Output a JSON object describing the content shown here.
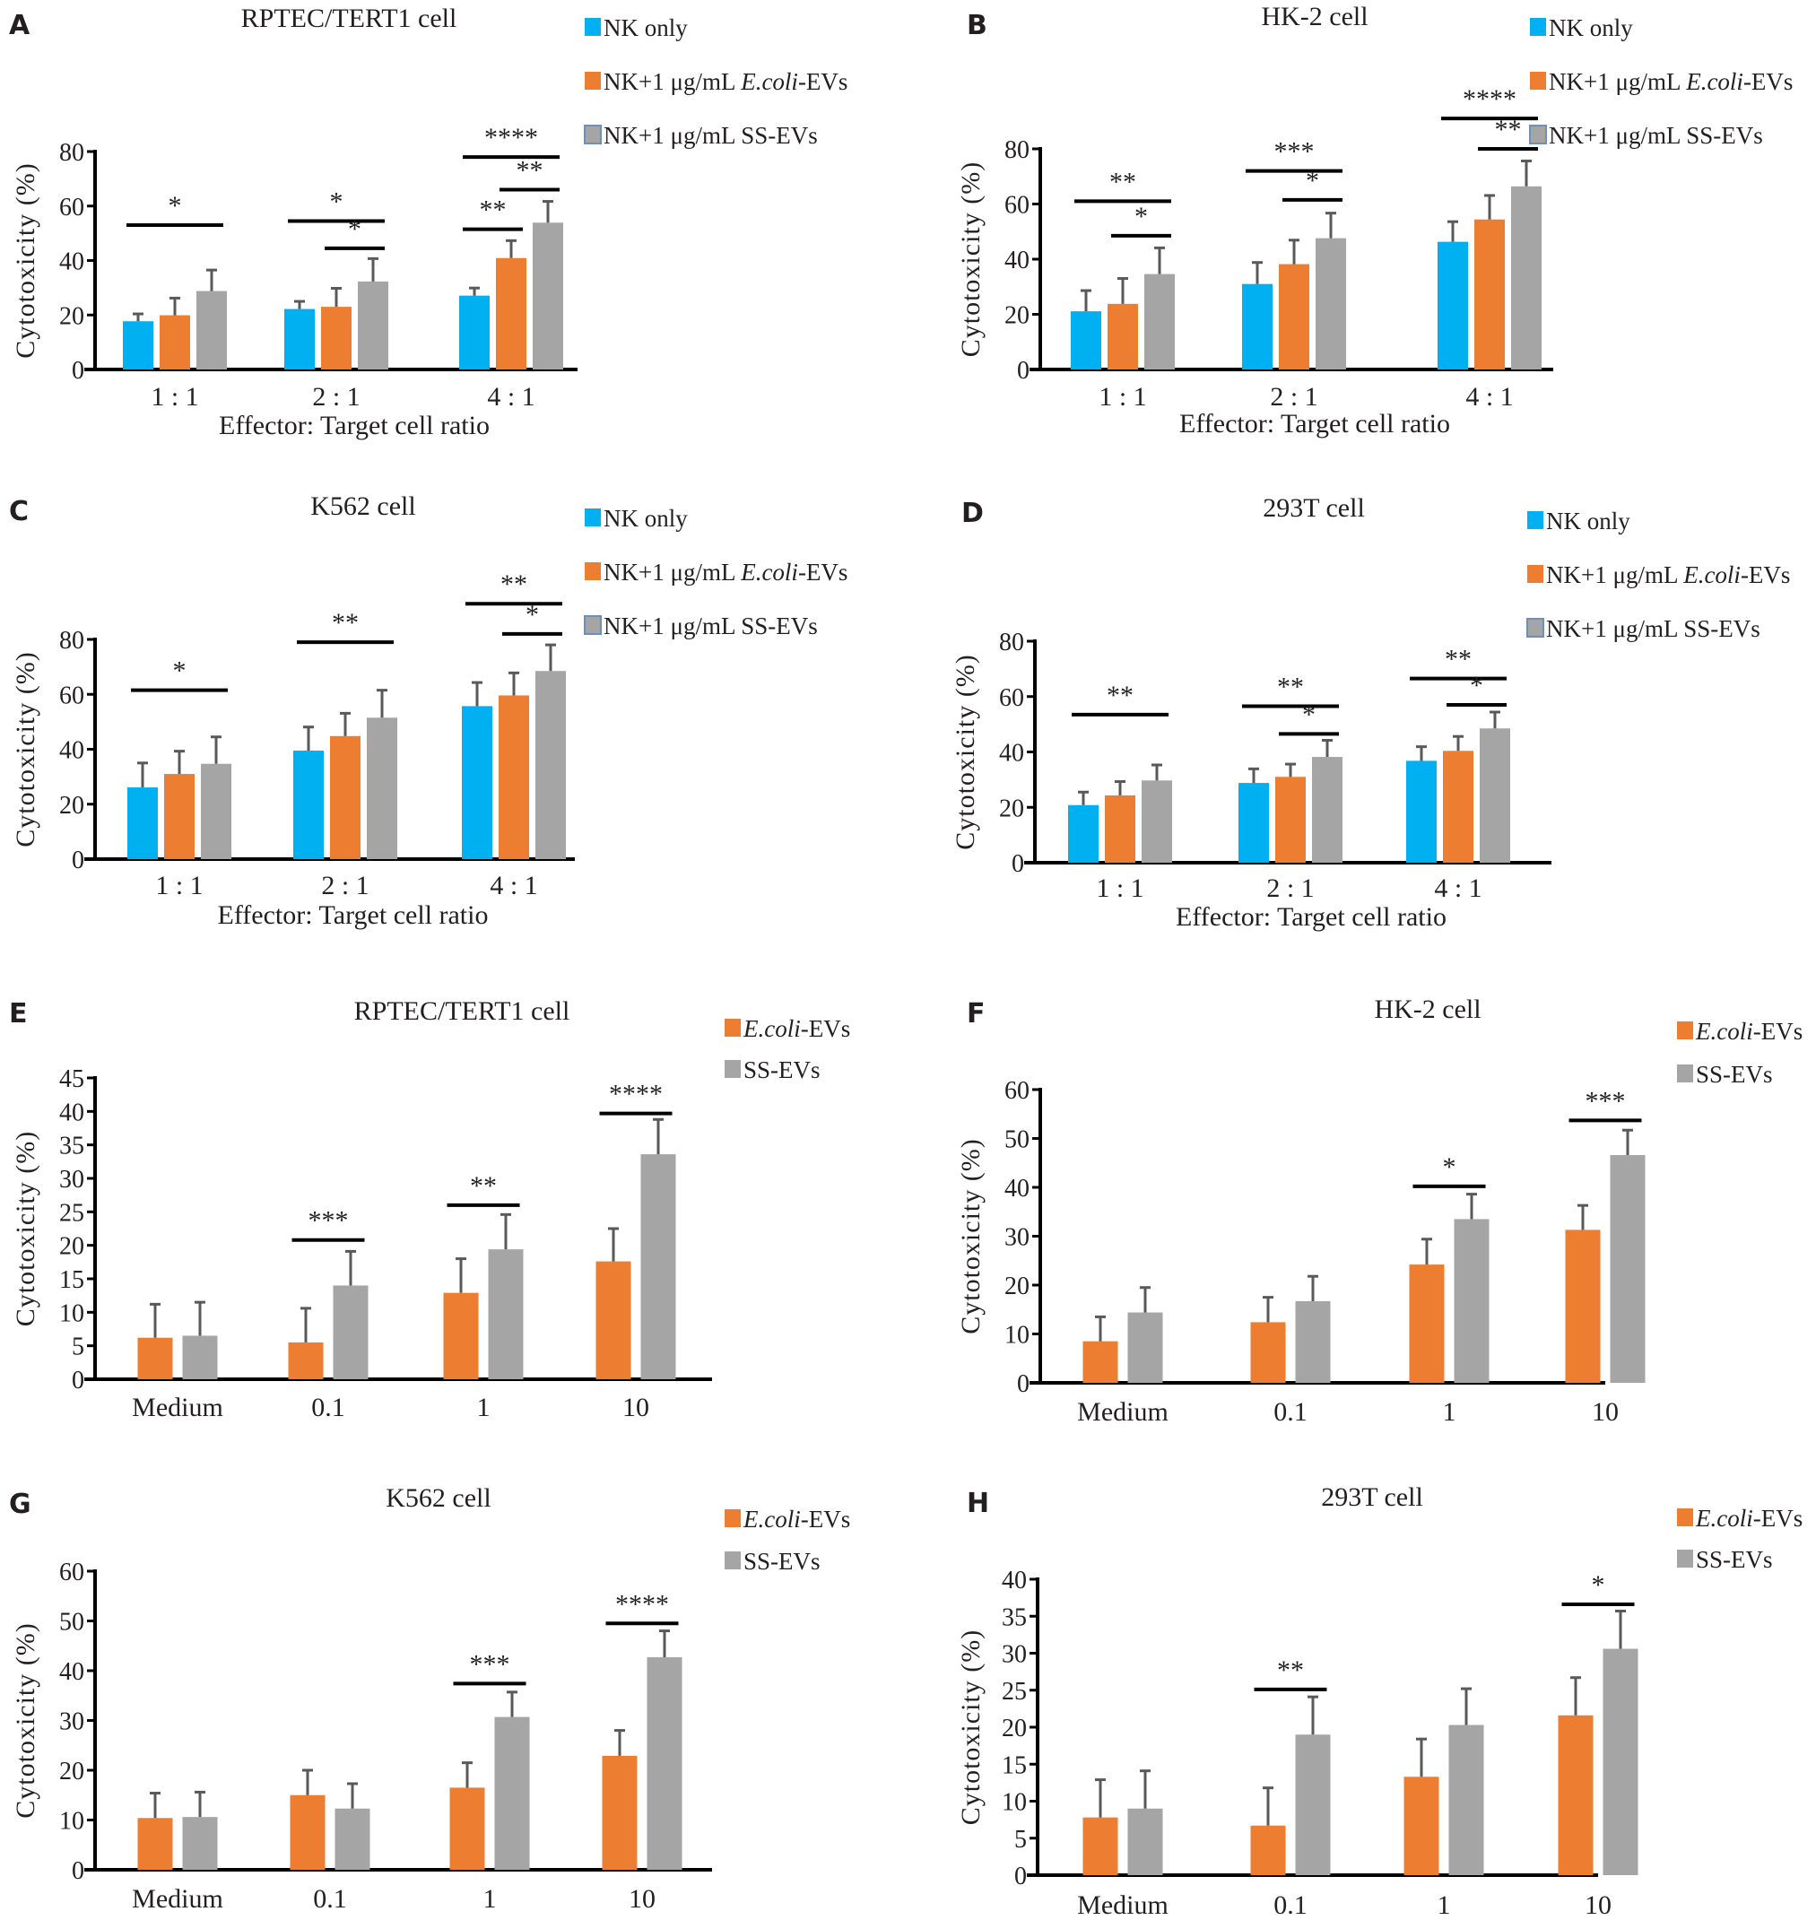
{
  "figure": {
    "colors": {
      "nk_only": "#00b0f0",
      "ecoli": "#ed7d31",
      "ss": "#a5a5a5",
      "ss_legend_border": "#6d8fb8",
      "error_bar": "#595959"
    }
  },
  "chart_data": [
    {
      "panel": "A",
      "type": "bar",
      "title": "RPTEC/TERT1 cell",
      "xlabel": "Effector: Target cell ratio",
      "ylabel": "Cytotoxicity (%)",
      "ylim": [
        0,
        80
      ],
      "yticks": [
        0,
        20,
        40,
        60,
        80
      ],
      "categories": [
        "1 : 1",
        "2 : 1",
        "4 : 1"
      ],
      "legend": [
        "NK only",
        "NK+1 μg/mL ",
        "NK+1 μg/mL SS-EVs"
      ],
      "legend_italic": [
        "",
        "E.coli",
        ""
      ],
      "legend_suffix": [
        "",
        "-EVs",
        ""
      ],
      "legend_position": "top-right",
      "series": [
        {
          "name": "NK only",
          "color_key": "nk_only",
          "values": [
            17.7,
            22.2,
            27.1
          ],
          "errors": [
            2.7,
            2.8,
            2.8
          ]
        },
        {
          "name": "NK+1 μg/mL E.coli-EVs",
          "color_key": "ecoli",
          "values": [
            19.9,
            23.0,
            40.9
          ],
          "errors": [
            6.3,
            6.8,
            6.4
          ]
        },
        {
          "name": "NK+1 μg/mL SS-EVs",
          "color_key": "ss",
          "values": [
            28.8,
            32.3,
            53.9
          ],
          "errors": [
            7.7,
            8.4,
            7.8
          ]
        }
      ],
      "significance": [
        {
          "group": 0,
          "from": 0,
          "to": 2,
          "label": "*",
          "level": 53
        },
        {
          "group": 1,
          "from": 0,
          "to": 2,
          "label": "*",
          "level": 54.5
        },
        {
          "group": 1,
          "from": 1,
          "to": 2,
          "label": "*",
          "level": 44.5
        },
        {
          "group": 2,
          "from": 0,
          "to": 2,
          "label": "****",
          "level": 78
        },
        {
          "group": 2,
          "from": 0,
          "to": 1,
          "label": "**",
          "level": 51.5
        },
        {
          "group": 2,
          "from": 1,
          "to": 2,
          "label": "**",
          "level": 66
        }
      ]
    },
    {
      "panel": "B",
      "type": "bar",
      "title": "HK-2 cell",
      "xlabel": "Effector: Target cell ratio",
      "ylabel": "Cytotoxicity (%)",
      "ylim": [
        0,
        80
      ],
      "yticks": [
        0,
        20,
        40,
        60,
        80
      ],
      "categories": [
        "1 : 1",
        "2 : 1",
        "4 : 1"
      ],
      "legend": [
        "NK only",
        "NK+1 μg/mL ",
        "NK+1 μg/mL SS-EVs"
      ],
      "legend_italic": [
        "",
        "E.coli",
        ""
      ],
      "legend_suffix": [
        "",
        "-EVs",
        ""
      ],
      "legend_position": "top-right",
      "series": [
        {
          "name": "NK only",
          "color_key": "nk_only",
          "values": [
            21.1,
            31.0,
            46.3
          ],
          "errors": [
            7.5,
            7.8,
            7.3
          ]
        },
        {
          "name": "NK+1 μg/mL E.coli-EVs",
          "color_key": "ecoli",
          "values": [
            23.8,
            38.2,
            54.4
          ],
          "errors": [
            9.2,
            8.7,
            8.7
          ]
        },
        {
          "name": "NK+1 μg/mL SS-EVs",
          "color_key": "ss",
          "values": [
            34.6,
            47.6,
            66.4
          ],
          "errors": [
            9.5,
            9.1,
            9.2
          ]
        }
      ],
      "significance": [
        {
          "group": 0,
          "from": 0,
          "to": 2,
          "label": "**",
          "level": 61
        },
        {
          "group": 0,
          "from": 1,
          "to": 2,
          "label": "*",
          "level": 48.5
        },
        {
          "group": 1,
          "from": 0,
          "to": 2,
          "label": "***",
          "level": 72
        },
        {
          "group": 1,
          "from": 1,
          "to": 2,
          "label": "*",
          "level": 61.5
        },
        {
          "group": 2,
          "from": 0,
          "to": 2,
          "label": "****",
          "level": 91
        },
        {
          "group": 2,
          "from": 1,
          "to": 2,
          "label": "**",
          "level": 80
        }
      ]
    },
    {
      "panel": "C",
      "type": "bar",
      "title": "K562 cell",
      "xlabel": "Effector: Target cell ratio",
      "ylabel": "Cytotoxicity (%)",
      "ylim": [
        0,
        80
      ],
      "yticks": [
        0,
        20,
        40,
        60,
        80
      ],
      "categories": [
        "1 : 1",
        "2 : 1",
        "4 : 1"
      ],
      "legend": [
        "NK only",
        "NK+1 μg/mL ",
        "NK+1 μg/mL SS-EVs"
      ],
      "legend_italic": [
        "",
        "E.coli",
        ""
      ],
      "legend_suffix": [
        "",
        "-EVs",
        ""
      ],
      "legend_position": "top-right",
      "series": [
        {
          "name": "NK only",
          "color_key": "nk_only",
          "values": [
            26.1,
            39.5,
            55.7
          ],
          "errors": [
            8.9,
            8.6,
            8.6
          ]
        },
        {
          "name": "NK+1 μg/mL E.coli-EVs",
          "color_key": "ecoli",
          "values": [
            31.0,
            44.8,
            59.6
          ],
          "errors": [
            8.3,
            8.3,
            8.2
          ]
        },
        {
          "name": "NK+1 μg/mL SS-EVs",
          "color_key": "ss",
          "values": [
            34.7,
            51.5,
            68.5
          ],
          "errors": [
            9.8,
            10.0,
            9.5
          ]
        }
      ],
      "significance": [
        {
          "group": 0,
          "from": 0,
          "to": 2,
          "label": "*",
          "level": 61.5
        },
        {
          "group": 1,
          "from": 0,
          "to": 2,
          "label": "**",
          "level": 79
        },
        {
          "group": 2,
          "from": 0,
          "to": 2,
          "label": "**",
          "level": 93
        },
        {
          "group": 2,
          "from": 1,
          "to": 2,
          "label": "*",
          "level": 82
        }
      ]
    },
    {
      "panel": "D",
      "type": "bar",
      "title": "293T cell",
      "xlabel": "Effector: Target cell ratio",
      "ylabel": "Cytotoxicity (%)",
      "ylim": [
        0,
        80
      ],
      "yticks": [
        0,
        20,
        40,
        60,
        80
      ],
      "categories": [
        "1 : 1",
        "2 : 1",
        "4 : 1"
      ],
      "legend": [
        "NK only",
        "NK+1 μg/mL ",
        "NK+1 μg/mL SS-EVs"
      ],
      "legend_italic": [
        "",
        "E.coli",
        ""
      ],
      "legend_suffix": [
        "",
        "-EVs",
        ""
      ],
      "legend_position": "top-right",
      "series": [
        {
          "name": "NK only",
          "color_key": "nk_only",
          "values": [
            20.8,
            28.8,
            36.8
          ],
          "errors": [
            4.7,
            5.1,
            5.1
          ]
        },
        {
          "name": "NK+1 μg/mL E.coli-EVs",
          "color_key": "ecoli",
          "values": [
            24.3,
            31.0,
            40.4
          ],
          "errors": [
            5.0,
            4.6,
            5.2
          ]
        },
        {
          "name": "NK+1 μg/mL SS-EVs",
          "color_key": "ss",
          "values": [
            29.7,
            38.2,
            48.5
          ],
          "errors": [
            5.6,
            6.0,
            5.9
          ]
        }
      ],
      "significance": [
        {
          "group": 0,
          "from": 0,
          "to": 2,
          "label": "**",
          "level": 53.5
        },
        {
          "group": 1,
          "from": 0,
          "to": 2,
          "label": "**",
          "level": 56.5
        },
        {
          "group": 1,
          "from": 1,
          "to": 2,
          "label": "*",
          "level": 46.5
        },
        {
          "group": 2,
          "from": 0,
          "to": 2,
          "label": "**",
          "level": 66.5
        },
        {
          "group": 2,
          "from": 1,
          "to": 2,
          "label": "*",
          "level": 57
        }
      ]
    },
    {
      "panel": "E",
      "type": "bar",
      "title": "RPTEC/TERT1 cell",
      "xlabel": "",
      "ylabel": "Cytotoxicity (%)",
      "ylim": [
        0,
        45
      ],
      "yticks": [
        0,
        5,
        10,
        15,
        20,
        25,
        30,
        35,
        40,
        45
      ],
      "categories": [
        "Medium",
        "0.1",
        "1",
        "10"
      ],
      "legend": [
        "",
        "SS-EVs"
      ],
      "legend_italic": [
        "E.coli",
        ""
      ],
      "legend_suffix": [
        "-EVs",
        ""
      ],
      "legend_position": "top-right",
      "series": [
        {
          "name": "E.coli-EVs",
          "color_key": "ecoli",
          "values": [
            6.2,
            5.5,
            12.9,
            17.6
          ],
          "errors": [
            5.0,
            5.1,
            5.1,
            4.9
          ]
        },
        {
          "name": "SS-EVs",
          "color_key": "ss",
          "values": [
            6.5,
            14.0,
            19.4,
            33.6
          ],
          "errors": [
            5.0,
            5.1,
            5.2,
            5.2
          ]
        }
      ],
      "significance": [
        {
          "group": 1,
          "from": 0,
          "to": 1,
          "label": "***",
          "level": 20.8
        },
        {
          "group": 2,
          "from": 0,
          "to": 1,
          "label": "**",
          "level": 26.0
        },
        {
          "group": 3,
          "from": 0,
          "to": 1,
          "label": "****",
          "level": 39.7
        }
      ]
    },
    {
      "panel": "F",
      "type": "bar",
      "title": "HK-2 cell",
      "xlabel": "",
      "ylabel": "Cytotoxicity (%)",
      "ylim": [
        0,
        60
      ],
      "yticks": [
        0,
        10,
        20,
        30,
        40,
        50,
        60
      ],
      "categories": [
        "Medium",
        "0.1",
        "1",
        "10"
      ],
      "legend": [
        "",
        "SS-EVs"
      ],
      "legend_italic": [
        "E.coli",
        ""
      ],
      "legend_suffix": [
        "-EVs",
        ""
      ],
      "legend_position": "top-right",
      "series": [
        {
          "name": "E.coli-EVs",
          "color_key": "ecoli",
          "values": [
            8.5,
            12.4,
            24.2,
            31.3
          ],
          "errors": [
            5.0,
            5.1,
            5.2,
            5.0
          ]
        },
        {
          "name": "SS-EVs",
          "color_key": "ss",
          "values": [
            14.4,
            16.7,
            33.5,
            46.6
          ],
          "errors": [
            5.1,
            5.1,
            5.1,
            5.1
          ]
        }
      ],
      "significance": [
        {
          "group": 2,
          "from": 0,
          "to": 1,
          "label": "*",
          "level": 40.2
        },
        {
          "group": 3,
          "from": 0,
          "to": 1,
          "label": "***",
          "level": 53.7
        }
      ]
    },
    {
      "panel": "G",
      "type": "bar",
      "title": "K562 cell",
      "xlabel": "",
      "ylabel": "Cytotoxicity (%)",
      "ylim": [
        0,
        60
      ],
      "yticks": [
        0,
        10,
        20,
        30,
        40,
        50,
        60
      ],
      "categories": [
        "Medium",
        "0.1",
        "1",
        "10"
      ],
      "legend": [
        "",
        "SS-EVs"
      ],
      "legend_italic": [
        "E.coli",
        ""
      ],
      "legend_suffix": [
        "-EVs",
        ""
      ],
      "legend_position": "top-right",
      "series": [
        {
          "name": "E.coli-EVs",
          "color_key": "ecoli",
          "values": [
            10.4,
            15.0,
            16.5,
            22.9
          ],
          "errors": [
            5.0,
            5.0,
            5.0,
            5.1
          ]
        },
        {
          "name": "SS-EVs",
          "color_key": "ss",
          "values": [
            10.6,
            12.3,
            30.7,
            42.7
          ],
          "errors": [
            5.0,
            5.0,
            5.0,
            5.3
          ]
        }
      ],
      "significance": [
        {
          "group": 2,
          "from": 0,
          "to": 1,
          "label": "***",
          "level": 37.4
        },
        {
          "group": 3,
          "from": 0,
          "to": 1,
          "label": "****",
          "level": 49.5
        }
      ]
    },
    {
      "panel": "H",
      "type": "bar",
      "title": "293T cell",
      "xlabel": "",
      "ylabel": "Cytotoxicity (%)",
      "ylim": [
        0,
        40
      ],
      "yticks": [
        0,
        5,
        10,
        15,
        20,
        25,
        30,
        35,
        40
      ],
      "categories": [
        "Medium",
        "0.1",
        "1",
        "10"
      ],
      "legend": [
        "",
        "SS-EVs"
      ],
      "legend_italic": [
        "E.coli",
        ""
      ],
      "legend_suffix": [
        "-EVs",
        ""
      ],
      "legend_position": "top-right",
      "series": [
        {
          "name": "E.coli-EVs",
          "color_key": "ecoli",
          "values": [
            7.8,
            6.7,
            13.3,
            21.6
          ],
          "errors": [
            5.1,
            5.1,
            5.1,
            5.1
          ]
        },
        {
          "name": "SS-EVs",
          "color_key": "ss",
          "values": [
            9.0,
            19.0,
            20.3,
            30.6
          ],
          "errors": [
            5.1,
            5.1,
            4.9,
            5.1
          ]
        }
      ],
      "significance": [
        {
          "group": 1,
          "from": 0,
          "to": 1,
          "label": "**",
          "level": 25.1
        },
        {
          "group": 3,
          "from": 0,
          "to": 1,
          "label": "*",
          "level": 36.6
        }
      ]
    }
  ]
}
